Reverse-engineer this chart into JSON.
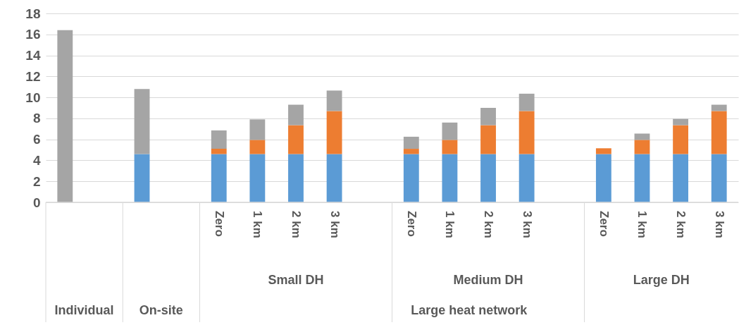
{
  "chart_data": {
    "type": "bar",
    "stacked": true,
    "categories": [
      null,
      null,
      null,
      null,
      "Zero",
      "1 km",
      "2 km",
      "3 km",
      null,
      "Zero",
      "1 km",
      "2 km",
      "3 km",
      null,
      "Zero",
      "1 km",
      "2 km",
      "3 km"
    ],
    "series": [
      {
        "color": "#5b9bd5",
        "values": [
          null,
          null,
          4.6,
          null,
          4.6,
          4.6,
          4.6,
          4.6,
          null,
          4.6,
          4.6,
          4.6,
          4.6,
          null,
          4.6,
          4.6,
          4.6,
          4.6
        ]
      },
      {
        "color": "#ed7d31",
        "values": [
          null,
          null,
          null,
          null,
          0.5,
          1.35,
          2.75,
          4.1,
          null,
          0.5,
          1.35,
          2.75,
          4.1,
          null,
          0.55,
          1.35,
          2.75,
          4.1
        ]
      },
      {
        "color": "#a5a5a5",
        "values": [
          16.4,
          null,
          6.2,
          null,
          1.75,
          1.95,
          1.95,
          1.95,
          null,
          1.15,
          1.65,
          1.65,
          1.65,
          null,
          null,
          0.6,
          0.6,
          0.6
        ]
      }
    ],
    "ylim": [
      0,
      18
    ],
    "yticks": [
      0,
      2,
      4,
      6,
      8,
      10,
      12,
      14,
      16,
      18
    ],
    "grid": "y",
    "legend": false,
    "annotations": [
      "Small DH",
      "Medium DH",
      "Large DH",
      "Individual",
      "On-site",
      "Large heat network"
    ]
  }
}
